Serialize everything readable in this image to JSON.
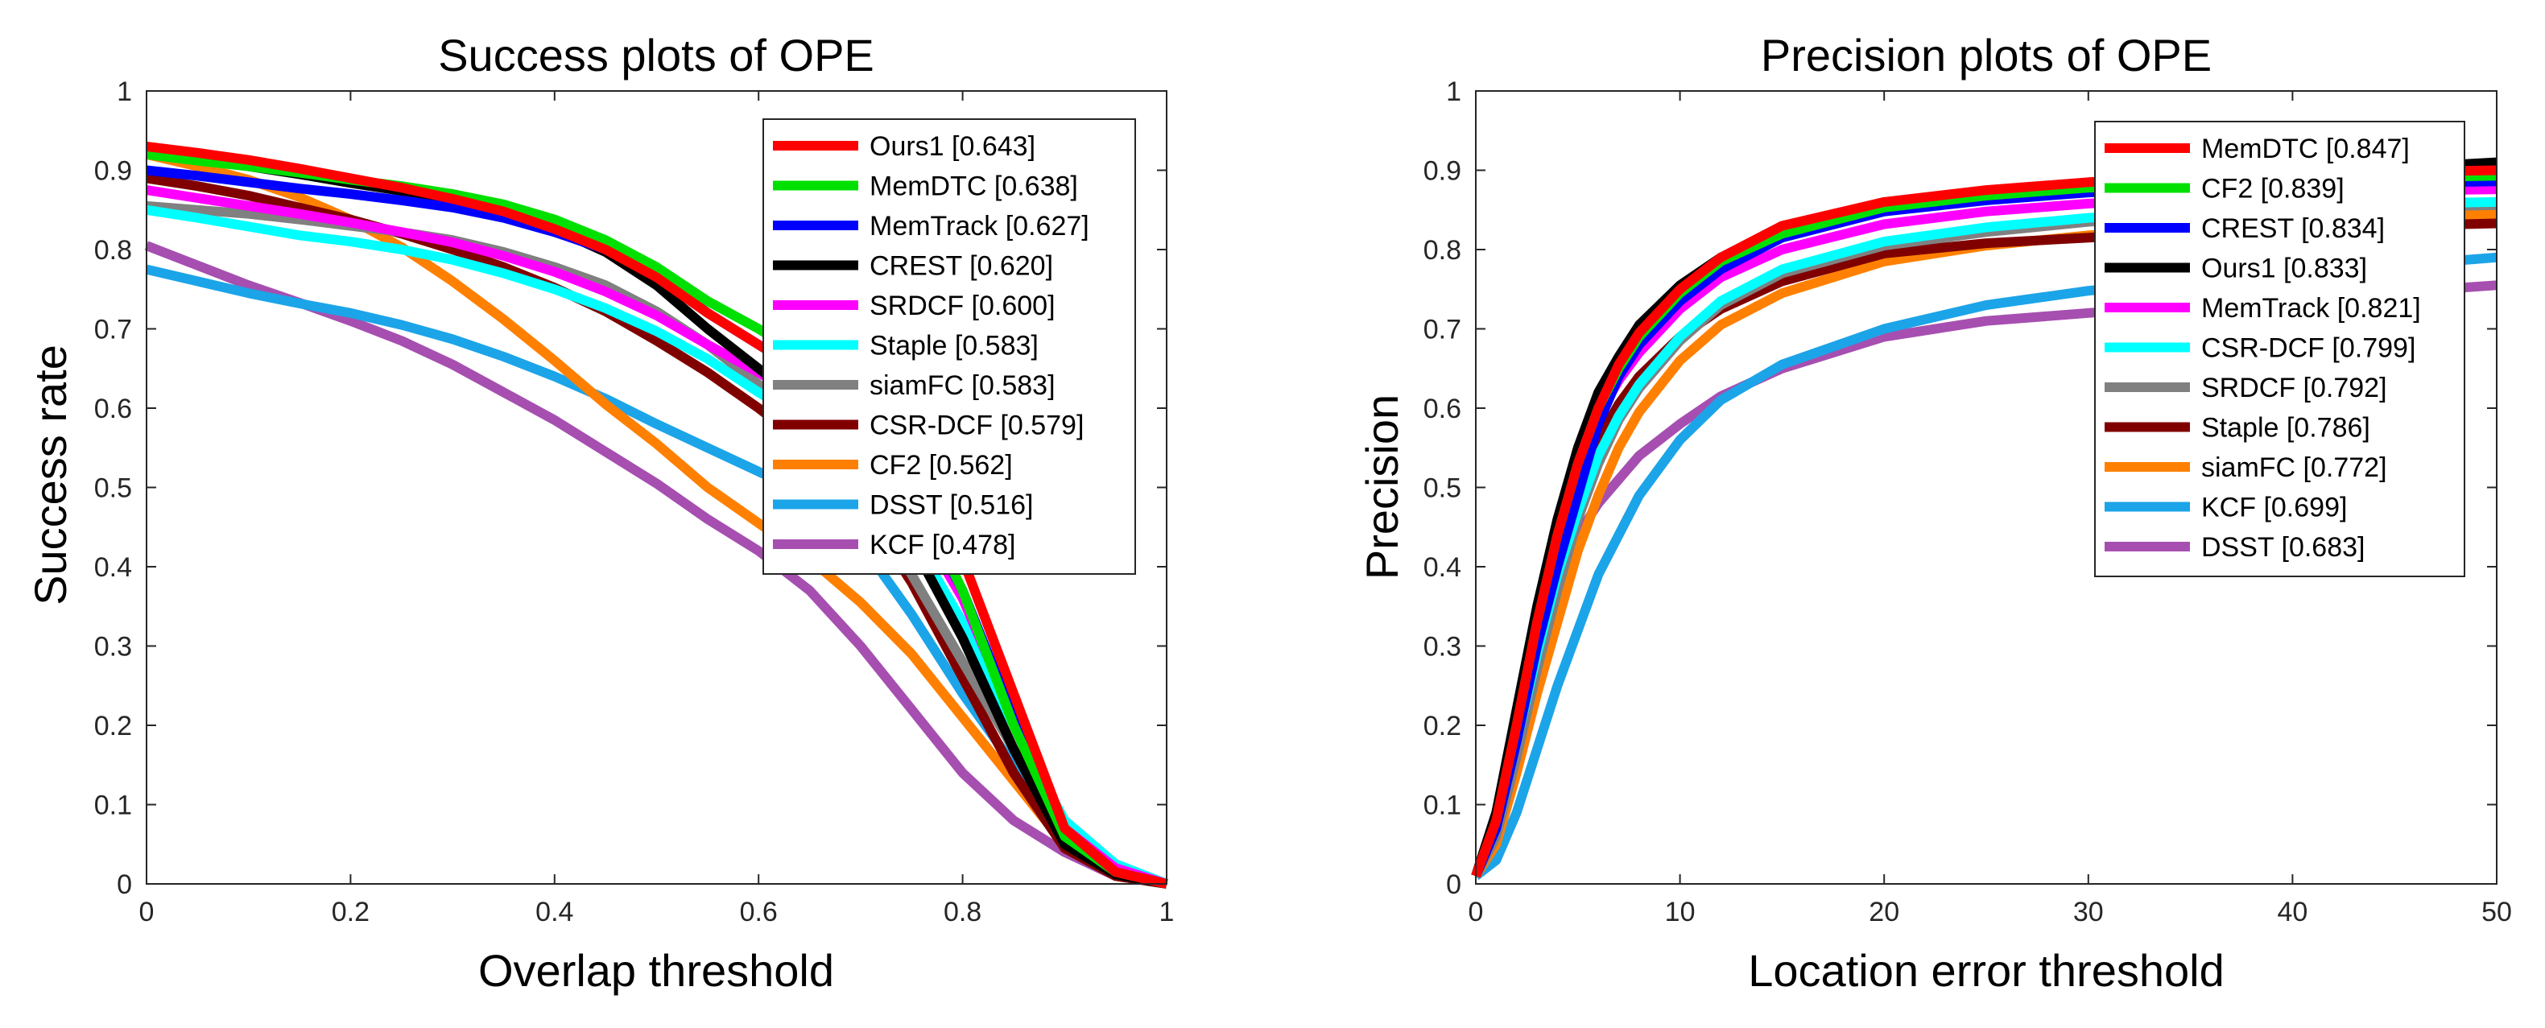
{
  "chart_data": [
    {
      "type": "line",
      "title": "Success plots of OPE",
      "xlabel": "Overlap threshold",
      "ylabel": "Success rate",
      "xlim": [
        0,
        1
      ],
      "ylim": [
        0,
        1
      ],
      "xticks": [
        "0",
        "0.2",
        "0.4",
        "0.6",
        "0.8",
        "1"
      ],
      "xtick_values": [
        0,
        0.2,
        0.4,
        0.6,
        0.8,
        1
      ],
      "yticks": [
        "0",
        "0.1",
        "0.2",
        "0.3",
        "0.4",
        "0.5",
        "0.6",
        "0.7",
        "0.8",
        "0.9",
        "1"
      ],
      "ytick_values": [
        0,
        0.1,
        0.2,
        0.3,
        0.4,
        0.5,
        0.6,
        0.7,
        0.8,
        0.9,
        1
      ],
      "grid": false,
      "legend_position": "top-right",
      "x": [
        0,
        0.05,
        0.1,
        0.15,
        0.2,
        0.25,
        0.3,
        0.35,
        0.4,
        0.45,
        0.5,
        0.55,
        0.6,
        0.65,
        0.7,
        0.75,
        0.8,
        0.85,
        0.9,
        0.95,
        1
      ],
      "series": [
        {
          "name": "Ours1",
          "legend": "Ours1 [0.643]",
          "color": "#ff0000",
          "values": [
            0.93,
            0.922,
            0.913,
            0.902,
            0.89,
            0.878,
            0.864,
            0.848,
            0.826,
            0.8,
            0.765,
            0.72,
            0.68,
            0.64,
            0.59,
            0.52,
            0.41,
            0.24,
            0.07,
            0.015,
            0.0
          ]
        },
        {
          "name": "MemDTC",
          "legend": "MemDTC [0.638]",
          "color": "#00e000",
          "values": [
            0.92,
            0.912,
            0.905,
            0.897,
            0.888,
            0.88,
            0.87,
            0.857,
            0.838,
            0.812,
            0.778,
            0.735,
            0.7,
            0.66,
            0.6,
            0.5,
            0.37,
            0.2,
            0.06,
            0.015,
            0.0
          ]
        },
        {
          "name": "MemTrack",
          "legend": "MemTrack [0.627]",
          "color": "#0000ff",
          "values": [
            0.9,
            0.893,
            0.885,
            0.877,
            0.87,
            0.862,
            0.853,
            0.84,
            0.822,
            0.8,
            0.768,
            0.72,
            0.68,
            0.64,
            0.58,
            0.49,
            0.37,
            0.21,
            0.06,
            0.015,
            0.0
          ]
        },
        {
          "name": "CREST",
          "legend": "CREST [0.620]",
          "color": "#000000",
          "values": [
            0.925,
            0.915,
            0.905,
            0.895,
            0.884,
            0.874,
            0.862,
            0.847,
            0.826,
            0.797,
            0.755,
            0.7,
            0.65,
            0.6,
            0.53,
            0.43,
            0.31,
            0.17,
            0.05,
            0.012,
            0.0
          ]
        },
        {
          "name": "SRDCF",
          "legend": "SRDCF [0.600]",
          "color": "#ff00ff",
          "values": [
            0.875,
            0.865,
            0.855,
            0.845,
            0.834,
            0.822,
            0.809,
            0.792,
            0.772,
            0.747,
            0.717,
            0.68,
            0.645,
            0.605,
            0.55,
            0.47,
            0.36,
            0.21,
            0.07,
            0.02,
            0.0
          ]
        },
        {
          "name": "Staple",
          "legend": "Staple [0.583]",
          "color": "#00ffff",
          "values": [
            0.85,
            0.84,
            0.829,
            0.818,
            0.81,
            0.8,
            0.787,
            0.77,
            0.75,
            0.726,
            0.697,
            0.662,
            0.62,
            0.58,
            0.52,
            0.44,
            0.33,
            0.2,
            0.08,
            0.025,
            0.0
          ]
        },
        {
          "name": "siamFC",
          "legend": "siamFC [0.583]",
          "color": "#808080",
          "values": [
            0.855,
            0.85,
            0.845,
            0.838,
            0.83,
            0.822,
            0.812,
            0.797,
            0.778,
            0.755,
            0.722,
            0.68,
            0.63,
            0.57,
            0.49,
            0.39,
            0.28,
            0.17,
            0.06,
            0.015,
            0.0
          ]
        },
        {
          "name": "CSR-DCF",
          "legend": "CSR-DCF [0.579]",
          "color": "#800000",
          "values": [
            0.89,
            0.88,
            0.868,
            0.853,
            0.838,
            0.82,
            0.8,
            0.778,
            0.752,
            0.722,
            0.685,
            0.645,
            0.6,
            0.55,
            0.48,
            0.38,
            0.26,
            0.14,
            0.045,
            0.01,
            0.0
          ]
        },
        {
          "name": "CF2",
          "legend": "CF2 [0.562]",
          "color": "#ff8000",
          "values": [
            0.92,
            0.905,
            0.888,
            0.866,
            0.838,
            0.803,
            0.76,
            0.712,
            0.66,
            0.605,
            0.555,
            0.5,
            0.455,
            0.41,
            0.355,
            0.29,
            0.21,
            0.13,
            0.05,
            0.01,
            0.0
          ]
        },
        {
          "name": "DSST",
          "legend": "DSST [0.516]",
          "color": "#1ca4e8",
          "values": [
            0.775,
            0.76,
            0.745,
            0.732,
            0.72,
            0.705,
            0.687,
            0.665,
            0.64,
            0.612,
            0.58,
            0.55,
            0.52,
            0.49,
            0.43,
            0.34,
            0.24,
            0.15,
            0.08,
            0.025,
            0.0
          ]
        },
        {
          "name": "KCF",
          "legend": "KCF [0.478]",
          "color": "#a64fb0",
          "values": [
            0.805,
            0.78,
            0.755,
            0.733,
            0.71,
            0.685,
            0.655,
            0.62,
            0.585,
            0.545,
            0.505,
            0.46,
            0.42,
            0.37,
            0.3,
            0.22,
            0.14,
            0.08,
            0.04,
            0.01,
            0.0
          ]
        }
      ]
    },
    {
      "type": "line",
      "title": "Precision plots of OPE",
      "xlabel": "Location error threshold",
      "ylabel": "Precision",
      "xlim": [
        0,
        50
      ],
      "ylim": [
        0,
        1
      ],
      "xticks": [
        "0",
        "10",
        "20",
        "30",
        "40",
        "50"
      ],
      "xtick_values": [
        0,
        10,
        20,
        30,
        40,
        50
      ],
      "yticks": [
        "0",
        "0.1",
        "0.2",
        "0.3",
        "0.4",
        "0.5",
        "0.6",
        "0.7",
        "0.8",
        "0.9",
        "1"
      ],
      "ytick_values": [
        0,
        0.1,
        0.2,
        0.3,
        0.4,
        0.5,
        0.6,
        0.7,
        0.8,
        0.9,
        1
      ],
      "grid": false,
      "legend_position": "top-right",
      "x": [
        0,
        1,
        2,
        3,
        4,
        5,
        6,
        7,
        8,
        10,
        12,
        15,
        20,
        25,
        30,
        35,
        40,
        45,
        50
      ],
      "series": [
        {
          "name": "MemDTC",
          "legend": "MemDTC [0.847]",
          "color": "#ff0000",
          "values": [
            0.01,
            0.08,
            0.2,
            0.33,
            0.44,
            0.53,
            0.6,
            0.655,
            0.695,
            0.75,
            0.79,
            0.83,
            0.86,
            0.875,
            0.885,
            0.89,
            0.895,
            0.898,
            0.9
          ]
        },
        {
          "name": "CF2",
          "legend": "CF2 [0.839]",
          "color": "#00e000",
          "values": [
            0.01,
            0.08,
            0.2,
            0.33,
            0.44,
            0.53,
            0.6,
            0.65,
            0.69,
            0.745,
            0.785,
            0.82,
            0.853,
            0.868,
            0.878,
            0.883,
            0.888,
            0.891,
            0.893
          ]
        },
        {
          "name": "CREST",
          "legend": "CREST [0.834]",
          "color": "#0000ff",
          "values": [
            0.01,
            0.07,
            0.18,
            0.3,
            0.4,
            0.49,
            0.58,
            0.64,
            0.68,
            0.735,
            0.775,
            0.815,
            0.848,
            0.862,
            0.872,
            0.877,
            0.881,
            0.884,
            0.886
          ]
        },
        {
          "name": "Ours1",
          "legend": "Ours1 [0.833]",
          "color": "#000000",
          "values": [
            0.01,
            0.09,
            0.22,
            0.35,
            0.46,
            0.55,
            0.62,
            0.665,
            0.705,
            0.755,
            0.79,
            0.818,
            0.848,
            0.865,
            0.877,
            0.887,
            0.895,
            0.903,
            0.91
          ]
        },
        {
          "name": "MemTrack",
          "legend": "MemTrack [0.821]",
          "color": "#ff00ff",
          "values": [
            0.01,
            0.08,
            0.2,
            0.32,
            0.43,
            0.52,
            0.59,
            0.635,
            0.67,
            0.725,
            0.765,
            0.8,
            0.832,
            0.848,
            0.858,
            0.865,
            0.87,
            0.874,
            0.876
          ]
        },
        {
          "name": "CSR-DCF",
          "legend": "CSR-DCF [0.799]",
          "color": "#00ffff",
          "values": [
            0.01,
            0.07,
            0.18,
            0.29,
            0.39,
            0.47,
            0.54,
            0.59,
            0.63,
            0.69,
            0.735,
            0.775,
            0.81,
            0.828,
            0.84,
            0.848,
            0.854,
            0.858,
            0.86
          ]
        },
        {
          "name": "SRDCF",
          "legend": "SRDCF [0.792]",
          "color": "#808080",
          "values": [
            0.01,
            0.06,
            0.16,
            0.27,
            0.37,
            0.46,
            0.53,
            0.585,
            0.625,
            0.685,
            0.73,
            0.77,
            0.805,
            0.822,
            0.835,
            0.843,
            0.849,
            0.853,
            0.856
          ]
        },
        {
          "name": "Staple",
          "legend": "Staple [0.786]",
          "color": "#800000",
          "values": [
            0.01,
            0.08,
            0.2,
            0.32,
            0.42,
            0.5,
            0.56,
            0.605,
            0.64,
            0.69,
            0.725,
            0.76,
            0.795,
            0.808,
            0.815,
            0.822,
            0.826,
            0.83,
            0.833
          ]
        },
        {
          "name": "siamFC",
          "legend": "siamFC [0.772]",
          "color": "#ff8000",
          "values": [
            0.01,
            0.05,
            0.14,
            0.24,
            0.33,
            0.42,
            0.49,
            0.55,
            0.595,
            0.66,
            0.705,
            0.745,
            0.785,
            0.805,
            0.818,
            0.828,
            0.834,
            0.84,
            0.845
          ]
        },
        {
          "name": "KCF",
          "legend": "KCF [0.699]",
          "color": "#1ca4e8",
          "values": [
            0.01,
            0.03,
            0.09,
            0.17,
            0.25,
            0.32,
            0.39,
            0.44,
            0.49,
            0.56,
            0.61,
            0.655,
            0.7,
            0.73,
            0.748,
            0.76,
            0.77,
            0.78,
            0.79
          ]
        },
        {
          "name": "DSST",
          "legend": "DSST [0.683]",
          "color": "#a64fb0",
          "values": [
            0.01,
            0.09,
            0.2,
            0.3,
            0.38,
            0.44,
            0.48,
            0.51,
            0.54,
            0.58,
            0.615,
            0.65,
            0.69,
            0.71,
            0.72,
            0.73,
            0.738,
            0.746,
            0.755
          ]
        }
      ]
    }
  ]
}
